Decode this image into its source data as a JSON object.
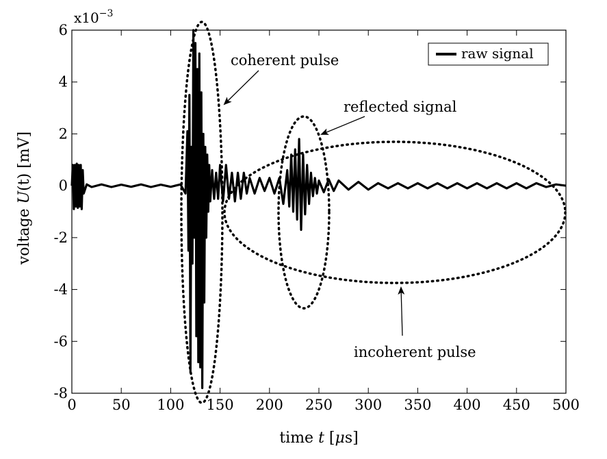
{
  "chart_data": {
    "type": "line",
    "xlabel_prefix": "time ",
    "xlabel_var": "t",
    "xlabel_unit_pre": " [",
    "xlabel_unit_mu": "μ",
    "xlabel_unit_post": "s]",
    "ylabel_prefix": "voltage ",
    "ylabel_var": "U",
    "ylabel_paren": "(t)",
    "ylabel_unit": " [mV]",
    "y_multiplier_base": "x10",
    "y_multiplier_exp": "−3",
    "xlim": [
      0,
      500
    ],
    "ylim": [
      -8,
      6
    ],
    "x_ticks": [
      0,
      50,
      100,
      150,
      200,
      250,
      300,
      350,
      400,
      450,
      500
    ],
    "x_tick_labels": [
      "0",
      "50",
      "100",
      "150",
      "200",
      "250",
      "300",
      "350",
      "400",
      "450",
      "500"
    ],
    "y_ticks": [
      -8,
      -6,
      -4,
      -2,
      0,
      2,
      4,
      6
    ],
    "y_tick_labels": [
      "-8",
      "-6",
      "-4",
      "-2",
      "0",
      "2",
      "4",
      "6"
    ],
    "grid": false,
    "legend_position": "top-right",
    "series": [
      {
        "name": "raw signal",
        "color": "#000000",
        "x": [
          0,
          1,
          2,
          3,
          4,
          5,
          6,
          7,
          8,
          9,
          10,
          11,
          12,
          15,
          20,
          30,
          40,
          50,
          60,
          70,
          80,
          90,
          100,
          110,
          115,
          117,
          118,
          119,
          120,
          121,
          122,
          123,
          124,
          125,
          126,
          127,
          128,
          129,
          130,
          131,
          132,
          133,
          134,
          135,
          136,
          137,
          138,
          139,
          140,
          142,
          144,
          146,
          148,
          150,
          153,
          156,
          159,
          162,
          165,
          168,
          171,
          174,
          177,
          180,
          185,
          190,
          195,
          200,
          205,
          210,
          214,
          218,
          220,
          222,
          224,
          226,
          228,
          230,
          232,
          234,
          236,
          238,
          240,
          242,
          244,
          246,
          248,
          250,
          255,
          260,
          265,
          270,
          280,
          290,
          300,
          310,
          320,
          330,
          340,
          350,
          360,
          370,
          380,
          390,
          400,
          410,
          420,
          430,
          440,
          450,
          460,
          470,
          480,
          490,
          500
        ],
        "values": [
          0,
          0.8,
          -0.9,
          0.8,
          -0.8,
          0.85,
          -0.85,
          0.8,
          -0.8,
          0.8,
          -0.9,
          0.6,
          -0.3,
          0.05,
          -0.05,
          0.05,
          -0.05,
          0.04,
          -0.04,
          0.05,
          -0.05,
          0.04,
          -0.04,
          0.05,
          -0.3,
          2.1,
          -2.5,
          3.5,
          -7.2,
          1.5,
          -3,
          6,
          -2,
          5.5,
          -5.8,
          4.5,
          -6.8,
          5.1,
          -7,
          3.6,
          -7.8,
          2,
          -4.5,
          1.5,
          -2,
          1.2,
          -1,
          0.8,
          -0.6,
          0.6,
          -0.5,
          0.5,
          -0.5,
          0.8,
          -0.6,
          0.8,
          -0.5,
          0.5,
          -0.6,
          0.5,
          -0.5,
          0.5,
          -0.3,
          0.3,
          -0.3,
          0.3,
          -0.2,
          0.3,
          -0.3,
          0.3,
          -0.7,
          0.6,
          -0.8,
          1.2,
          -1,
          1.4,
          -1.3,
          1.8,
          -1.7,
          1.2,
          -1.1,
          0.8,
          -0.7,
          0.5,
          -0.4,
          0.3,
          -0.3,
          0.2,
          -0.25,
          0.25,
          -0.2,
          0.2,
          -0.15,
          0.15,
          -0.15,
          0.1,
          -0.1,
          0.1,
          -0.1,
          0.1,
          -0.1,
          0.1,
          -0.1,
          0.1,
          -0.1,
          0.1,
          -0.1,
          0.1,
          -0.1,
          0.1,
          -0.1,
          0.1,
          -0.05,
          0.05,
          0
        ]
      }
    ],
    "annotations": [
      {
        "text": "coherent pulse",
        "anchor_x": 150,
        "anchor_y": 4.7
      },
      {
        "text": "reflected signal",
        "anchor_x": 253,
        "anchor_y": 3.3
      },
      {
        "text": "incoherent pulse",
        "anchor_x": 333,
        "anchor_y": -3.4
      }
    ]
  }
}
